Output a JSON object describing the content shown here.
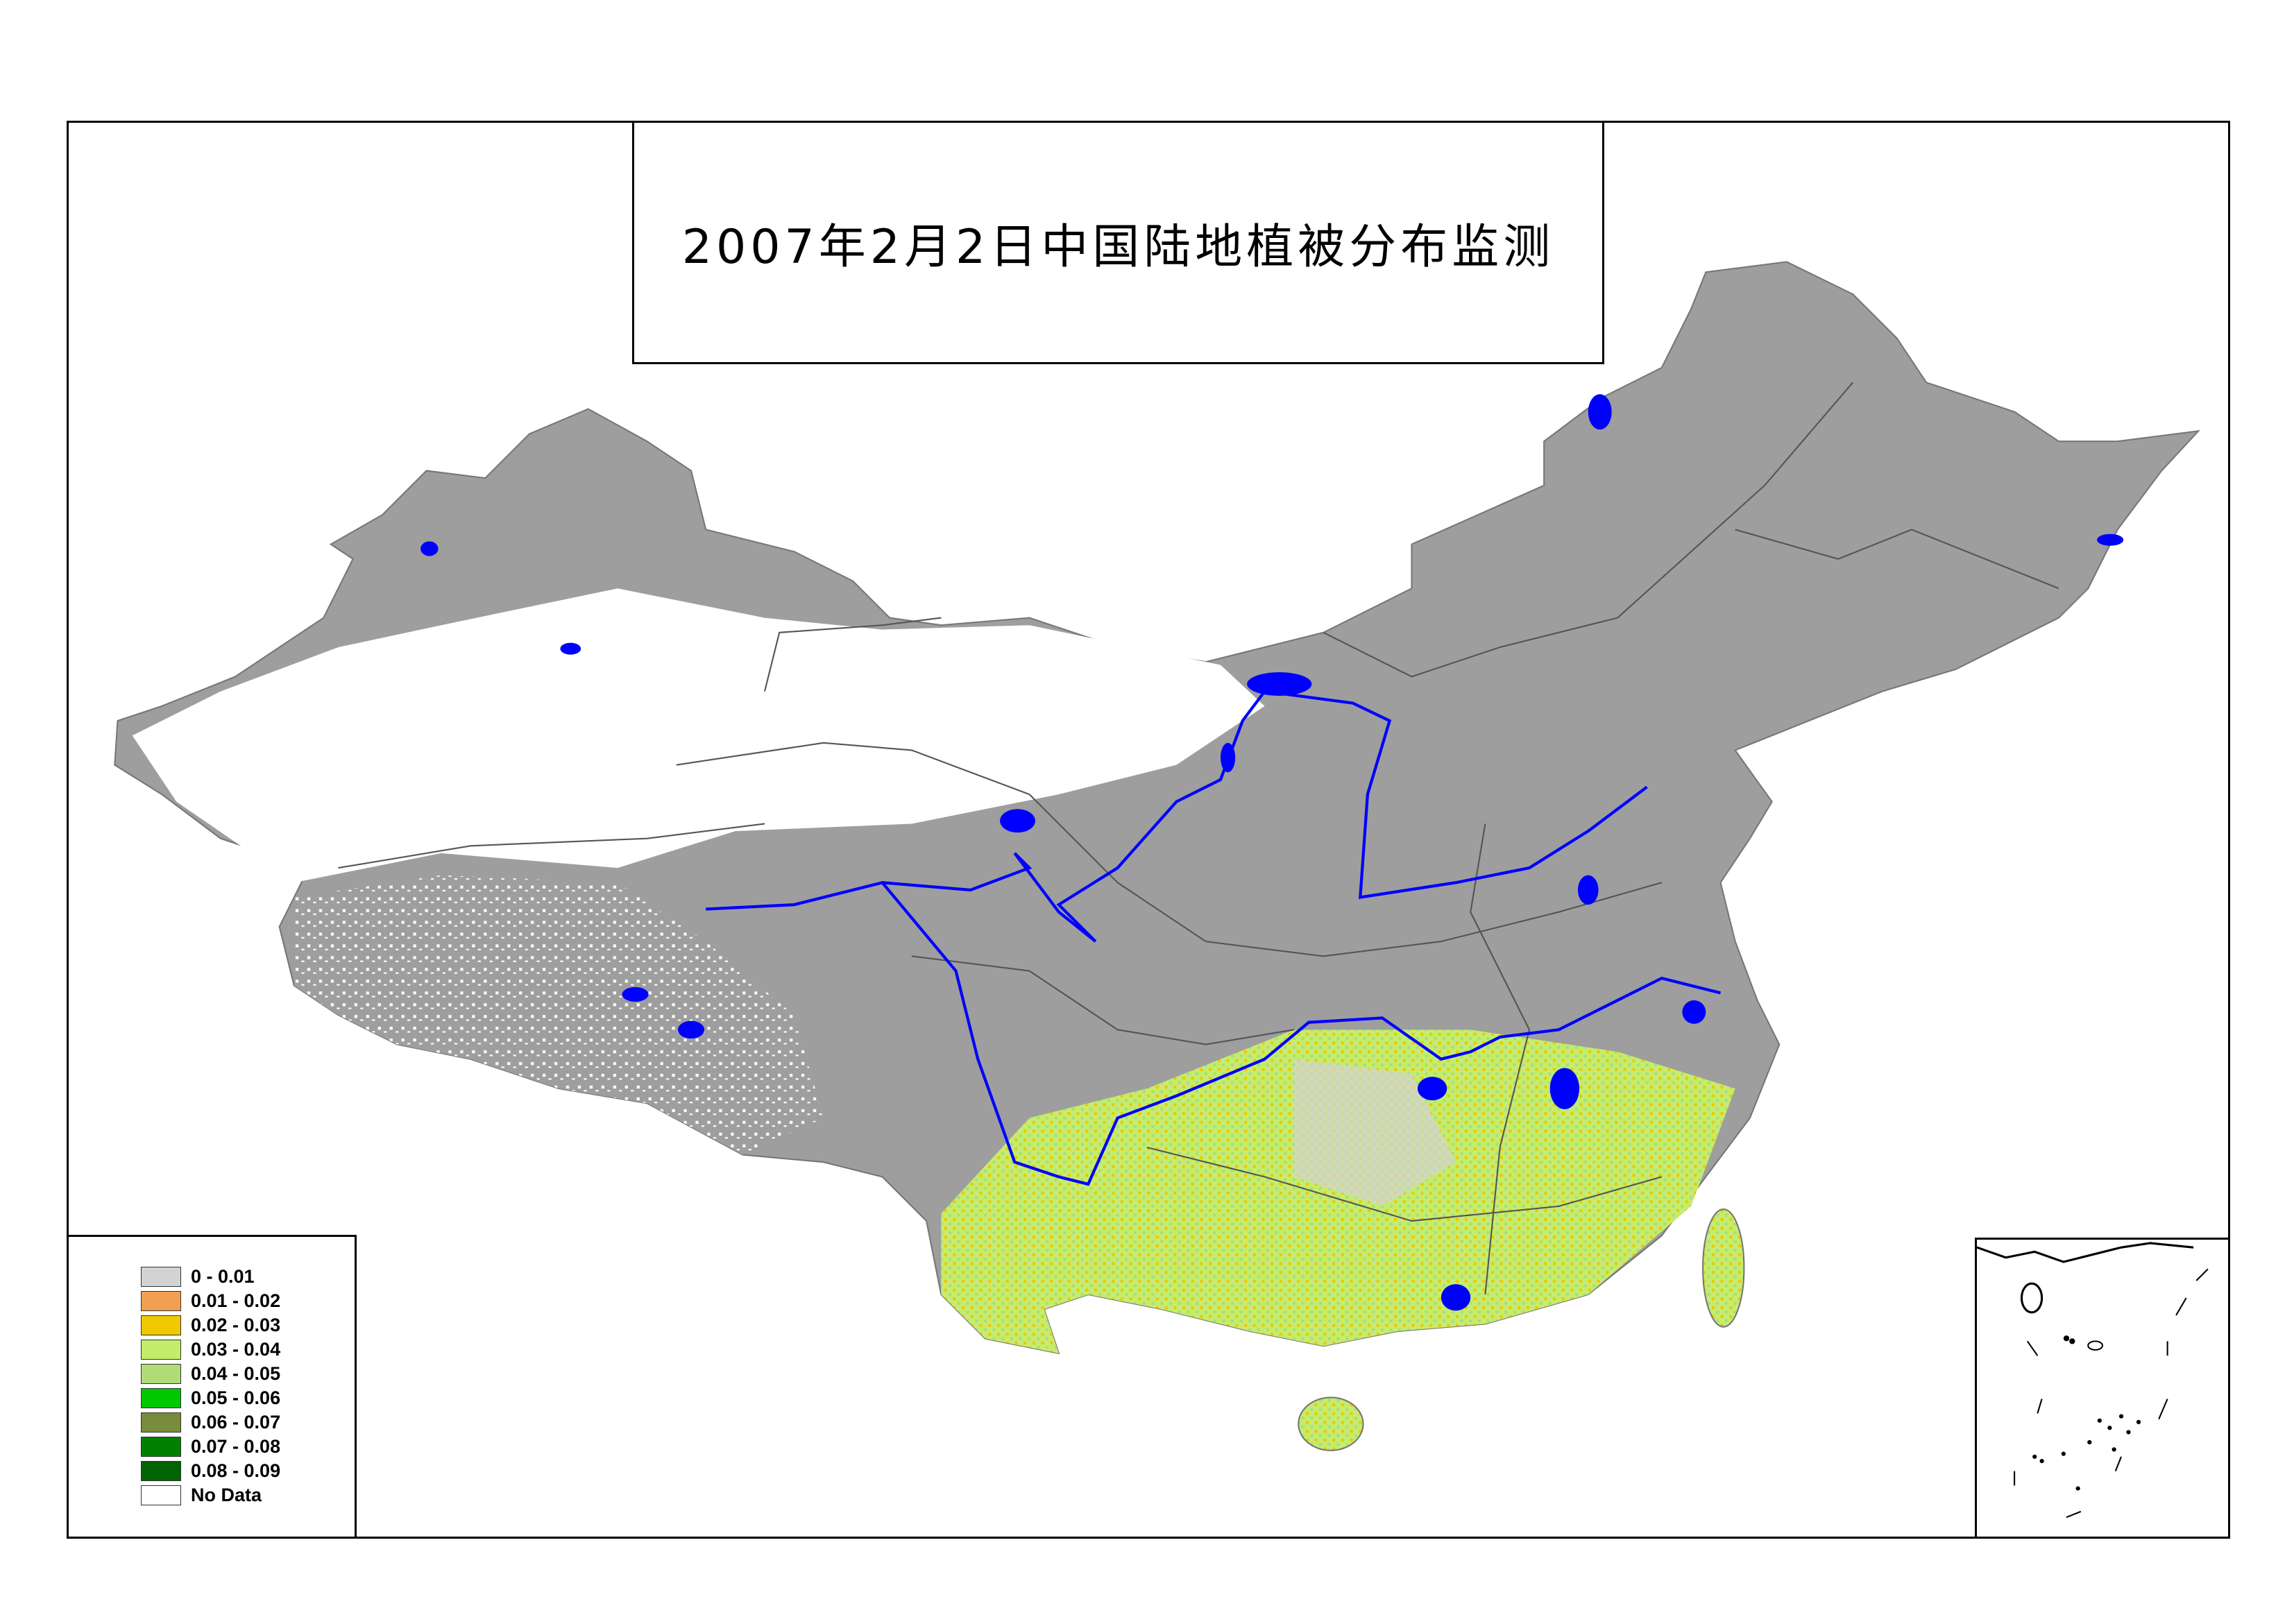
{
  "map": {
    "title": "2007年2月2日中国陆地植被分布监测",
    "colors": {
      "land_low": "#9e9e9e",
      "no_data": "#ffffff",
      "water": "#0000ff",
      "boundary": "#555555"
    }
  },
  "legend": {
    "items": [
      {
        "label": "0 - 0.01",
        "color": "#d3d3d3"
      },
      {
        "label": "0.01 - 0.02",
        "color": "#f0a050"
      },
      {
        "label": "0.02 - 0.03",
        "color": "#f0c800"
      },
      {
        "label": "0.03 - 0.04",
        "color": "#c3ee6b"
      },
      {
        "label": "0.04 - 0.05",
        "color": "#b0dc78"
      },
      {
        "label": "0.05 - 0.06",
        "color": "#00c800"
      },
      {
        "label": "0.06 - 0.07",
        "color": "#788c3c"
      },
      {
        "label": "0.07 - 0.08",
        "color": "#008000"
      },
      {
        "label": "0.08 - 0.09",
        "color": "#006400"
      },
      {
        "label": "No Data",
        "color": "#ffffff"
      }
    ]
  }
}
